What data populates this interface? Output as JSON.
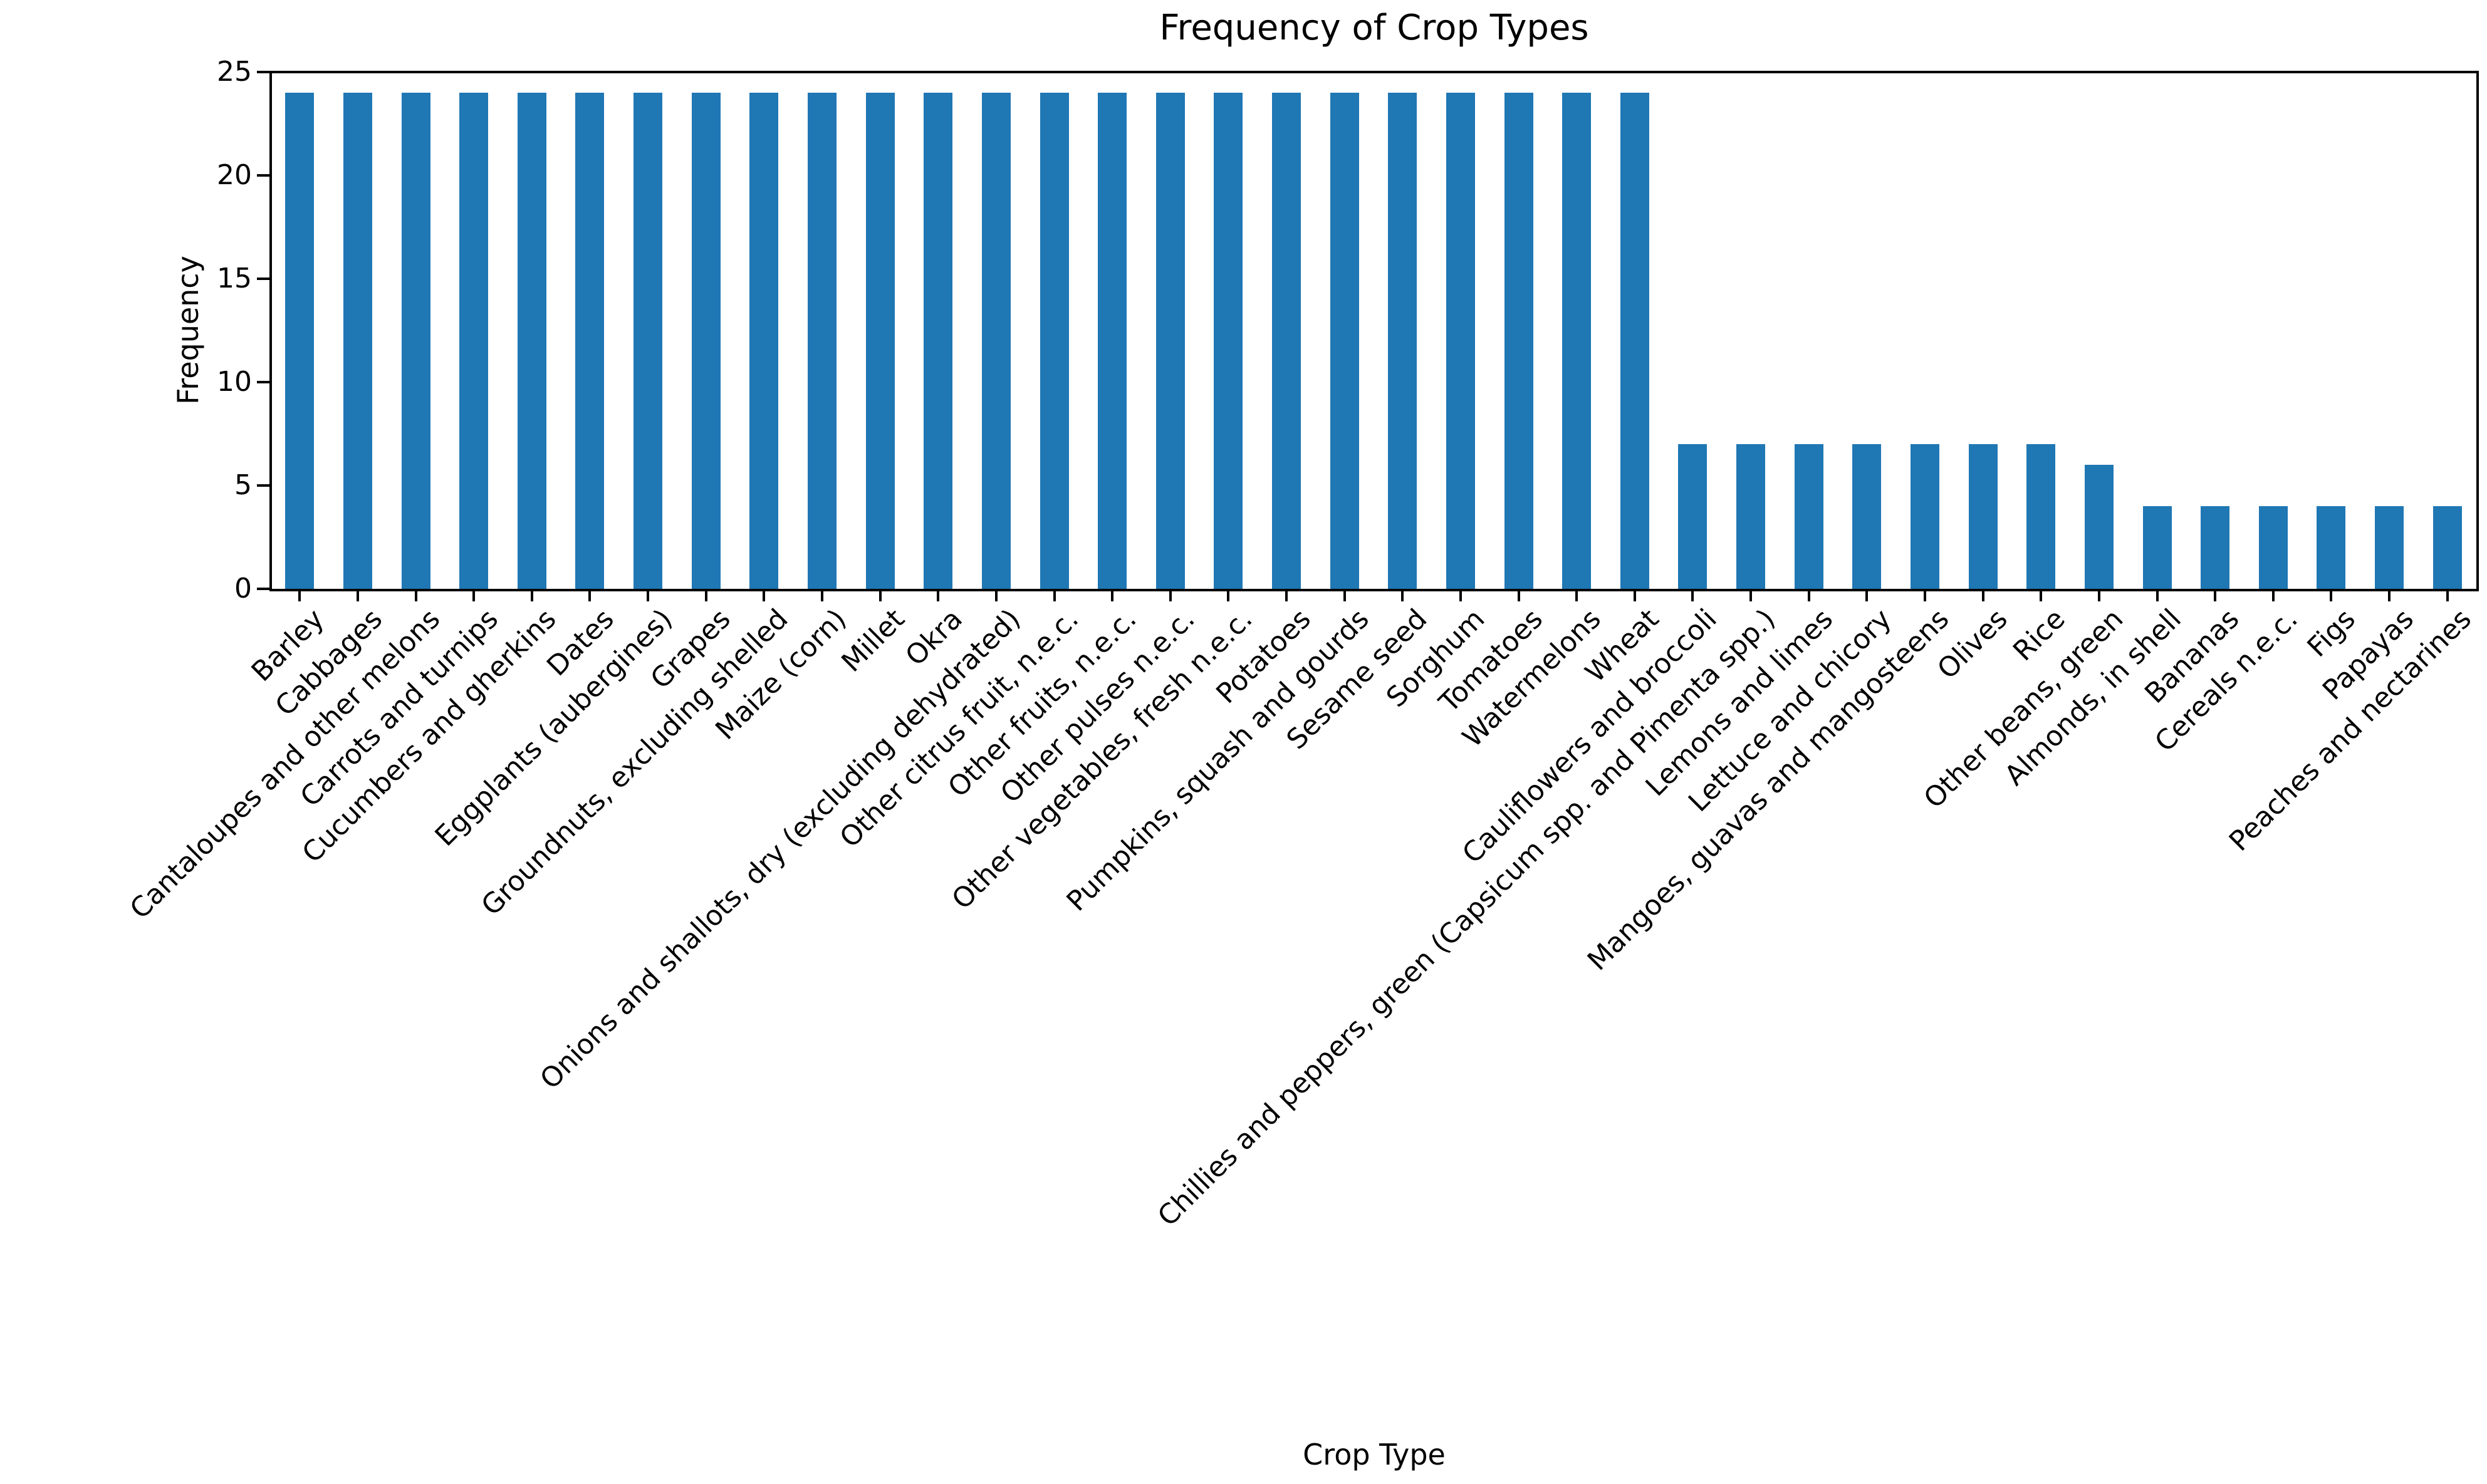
{
  "figure": {
    "background_color": "#ffffff",
    "text_color": "#000000",
    "spine_color": "#000000"
  },
  "chart_data": {
    "type": "bar",
    "title": "Frequency of Crop Types",
    "xlabel": "Crop Type",
    "ylabel": "Frequency",
    "bar_color": "#1f77b4",
    "ylim": [
      0,
      25
    ],
    "yticks": [
      0,
      5,
      10,
      15,
      20,
      25
    ],
    "grid": false,
    "legend_position": "none",
    "x_tick_label_rotation_deg": 45,
    "categories": [
      "Barley",
      "Cabbages",
      "Cantaloupes and other melons",
      "Carrots and turnips",
      "Cucumbers and gherkins",
      "Dates",
      "Eggplants (aubergines)",
      "Grapes",
      "Groundnuts, excluding shelled",
      "Maize (corn)",
      "Millet",
      "Okra",
      "Onions and shallots, dry (excluding dehydrated)",
      "Other citrus fruit, n.e.c.",
      "Other fruits, n.e.c.",
      "Other pulses n.e.c.",
      "Other vegetables, fresh n.e.c.",
      "Potatoes",
      "Pumpkins, squash and gourds",
      "Sesame seed",
      "Sorghum",
      "Tomatoes",
      "Watermelons",
      "Wheat",
      "Cauliflowers and broccoli",
      "Chillies and peppers, green (Capsicum spp. and Pimenta spp.)",
      "Lemons and limes",
      "Lettuce and chicory",
      "Mangoes, guavas and mangosteens",
      "Olives",
      "Rice",
      "Other beans, green",
      "Almonds, in shell",
      "Bananas",
      "Cereals n.e.c.",
      "Figs",
      "Papayas",
      "Peaches and nectarines"
    ],
    "values": [
      24,
      24,
      24,
      24,
      24,
      24,
      24,
      24,
      24,
      24,
      24,
      24,
      24,
      24,
      24,
      24,
      24,
      24,
      24,
      24,
      24,
      24,
      24,
      24,
      7,
      7,
      7,
      7,
      7,
      7,
      7,
      6,
      4,
      4,
      4,
      4,
      4,
      4
    ]
  }
}
